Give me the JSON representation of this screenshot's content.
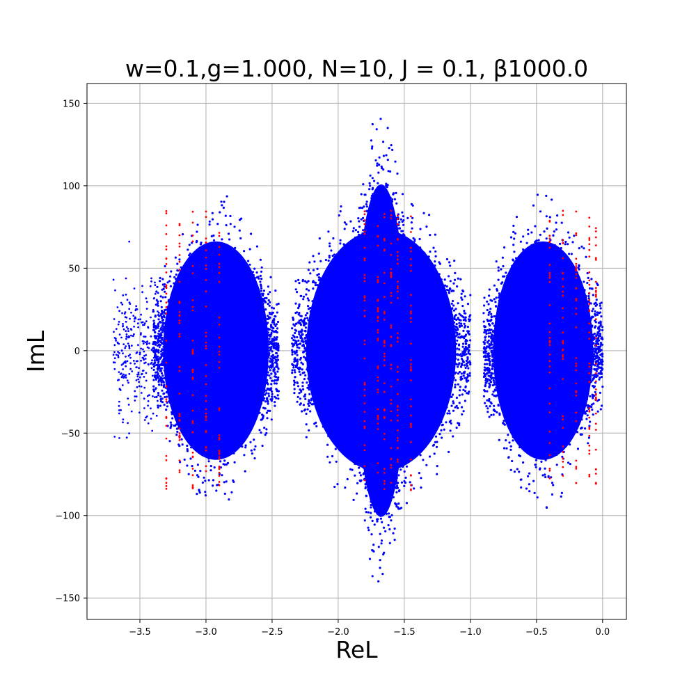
{
  "chart_data": {
    "type": "scatter",
    "title": "w=0.1,g=1.000, N=10, J = 0.1, β1000.0",
    "xlabel": "ReL",
    "ylabel": "ImL",
    "xlim": [
      -3.9,
      0.18
    ],
    "ylim": [
      -163,
      162
    ],
    "grid": true,
    "x_ticks": [
      {
        "value": -3.5,
        "label": "−3.5"
      },
      {
        "value": -3.0,
        "label": "−3.0"
      },
      {
        "value": -2.5,
        "label": "−2.5"
      },
      {
        "value": -2.0,
        "label": "−2.0"
      },
      {
        "value": -1.5,
        "label": "−1.5"
      },
      {
        "value": -1.0,
        "label": "−1.0"
      },
      {
        "value": -0.5,
        "label": "−0.5"
      },
      {
        "value": 0.0,
        "label": "0.0"
      }
    ],
    "y_ticks": [
      {
        "value": 150,
        "label": "150"
      },
      {
        "value": 100,
        "label": "100"
      },
      {
        "value": 50,
        "label": "50"
      },
      {
        "value": 0,
        "label": "0"
      },
      {
        "value": -50,
        "label": "−50"
      },
      {
        "value": -100,
        "label": "−100"
      },
      {
        "value": -150,
        "label": "−150"
      }
    ],
    "series": [
      {
        "color": "#0000ff",
        "clusters": [
          {
            "re_range": [
              -3.4,
              -2.45
            ],
            "im_peak": 92
          },
          {
            "re_range": [
              -2.35,
              -1.0
            ],
            "im_peak": 102
          },
          {
            "re_range": [
              -1.9,
              -1.45
            ],
            "im_peak": 140
          },
          {
            "re_range": [
              -0.9,
              0.0
            ],
            "im_peak": 92
          }
        ]
      },
      {
        "color": "#ff0000",
        "columns_re": [
          -3.3,
          -3.2,
          -3.1,
          -3.0,
          -2.9,
          -1.8,
          -1.7,
          -1.65,
          -1.6,
          -1.55,
          -1.45,
          -0.4,
          -0.3,
          -0.2,
          -0.1,
          -0.05
        ],
        "im_range": [
          -85,
          85
        ]
      }
    ]
  }
}
